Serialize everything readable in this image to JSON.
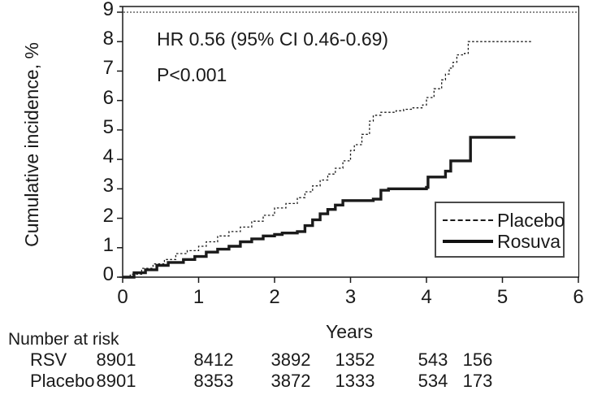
{
  "chart_data": {
    "type": "line",
    "subtype": "step-km-cumulative-incidence",
    "xlabel": "Years",
    "ylabel": "Cumulative incidence, %",
    "xlim": [
      0,
      6
    ],
    "ylim": [
      0,
      9
    ],
    "xticks": [
      0,
      1,
      2,
      3,
      4,
      5,
      6
    ],
    "yticks": [
      0,
      1,
      2,
      3,
      4,
      5,
      6,
      7,
      8,
      9
    ],
    "grid": "single dotted gridline at y=9 under top border",
    "legend_position": "inside lower right",
    "annotations": {
      "hr": "HR 0.56 (95% CI 0.46-0.69)",
      "p": "P<0.001"
    },
    "line_color": "#1a1a1a",
    "legend": [
      {
        "label": "Placebo",
        "style": "dashed"
      },
      {
        "label": "Rosuva",
        "style": "solid"
      }
    ],
    "series": [
      {
        "name": "Placebo",
        "style": "dashed",
        "step": true,
        "points": [
          [
            0,
            0
          ],
          [
            0.1,
            0.1
          ],
          [
            0.25,
            0.3
          ],
          [
            0.4,
            0.45
          ],
          [
            0.55,
            0.6
          ],
          [
            0.7,
            0.8
          ],
          [
            0.85,
            0.9
          ],
          [
            1.0,
            1.05
          ],
          [
            1.1,
            1.2
          ],
          [
            1.25,
            1.4
          ],
          [
            1.4,
            1.55
          ],
          [
            1.55,
            1.7
          ],
          [
            1.7,
            1.9
          ],
          [
            1.85,
            2.1
          ],
          [
            2.0,
            2.35
          ],
          [
            2.15,
            2.5
          ],
          [
            2.3,
            2.7
          ],
          [
            2.4,
            2.9
          ],
          [
            2.5,
            3.1
          ],
          [
            2.6,
            3.3
          ],
          [
            2.7,
            3.5
          ],
          [
            2.8,
            3.7
          ],
          [
            2.9,
            3.95
          ],
          [
            3.0,
            4.3
          ],
          [
            3.05,
            4.5
          ],
          [
            3.15,
            4.85
          ],
          [
            3.25,
            5.3
          ],
          [
            3.3,
            5.5
          ],
          [
            3.4,
            5.6
          ],
          [
            3.6,
            5.65
          ],
          [
            3.7,
            5.7
          ],
          [
            3.8,
            5.75
          ],
          [
            3.95,
            5.85
          ],
          [
            4.0,
            6.1
          ],
          [
            4.1,
            6.4
          ],
          [
            4.2,
            6.7
          ],
          [
            4.25,
            6.9
          ],
          [
            4.3,
            7.1
          ],
          [
            4.35,
            7.3
          ],
          [
            4.4,
            7.55
          ],
          [
            4.5,
            7.6
          ],
          [
            4.55,
            8.0
          ],
          [
            5.4,
            8.0
          ]
        ]
      },
      {
        "name": "Rosuva",
        "style": "solid",
        "step": true,
        "points": [
          [
            0,
            0
          ],
          [
            0.15,
            0.15
          ],
          [
            0.3,
            0.25
          ],
          [
            0.45,
            0.4
          ],
          [
            0.6,
            0.5
          ],
          [
            0.8,
            0.6
          ],
          [
            0.95,
            0.7
          ],
          [
            1.1,
            0.85
          ],
          [
            1.25,
            0.95
          ],
          [
            1.4,
            1.05
          ],
          [
            1.55,
            1.2
          ],
          [
            1.7,
            1.3
          ],
          [
            1.85,
            1.4
          ],
          [
            2.0,
            1.45
          ],
          [
            2.1,
            1.5
          ],
          [
            2.3,
            1.55
          ],
          [
            2.4,
            1.75
          ],
          [
            2.5,
            1.95
          ],
          [
            2.6,
            2.15
          ],
          [
            2.7,
            2.3
          ],
          [
            2.8,
            2.45
          ],
          [
            2.9,
            2.6
          ],
          [
            3.3,
            2.65
          ],
          [
            3.4,
            2.95
          ],
          [
            3.5,
            3.0
          ],
          [
            4.0,
            3.05
          ],
          [
            4.02,
            3.4
          ],
          [
            4.25,
            3.6
          ],
          [
            4.32,
            3.95
          ],
          [
            4.58,
            4.75
          ],
          [
            5.17,
            4.75
          ]
        ]
      }
    ]
  },
  "risk_table": {
    "title": "Number at risk",
    "rows": [
      {
        "label": "RSV",
        "values": [
          "8901",
          "8412",
          "3892",
          "1352",
          "543",
          "156"
        ]
      },
      {
        "label": "Placebo",
        "values": [
          "8901",
          "8353",
          "3872",
          "1333",
          "534",
          "173"
        ]
      }
    ]
  }
}
